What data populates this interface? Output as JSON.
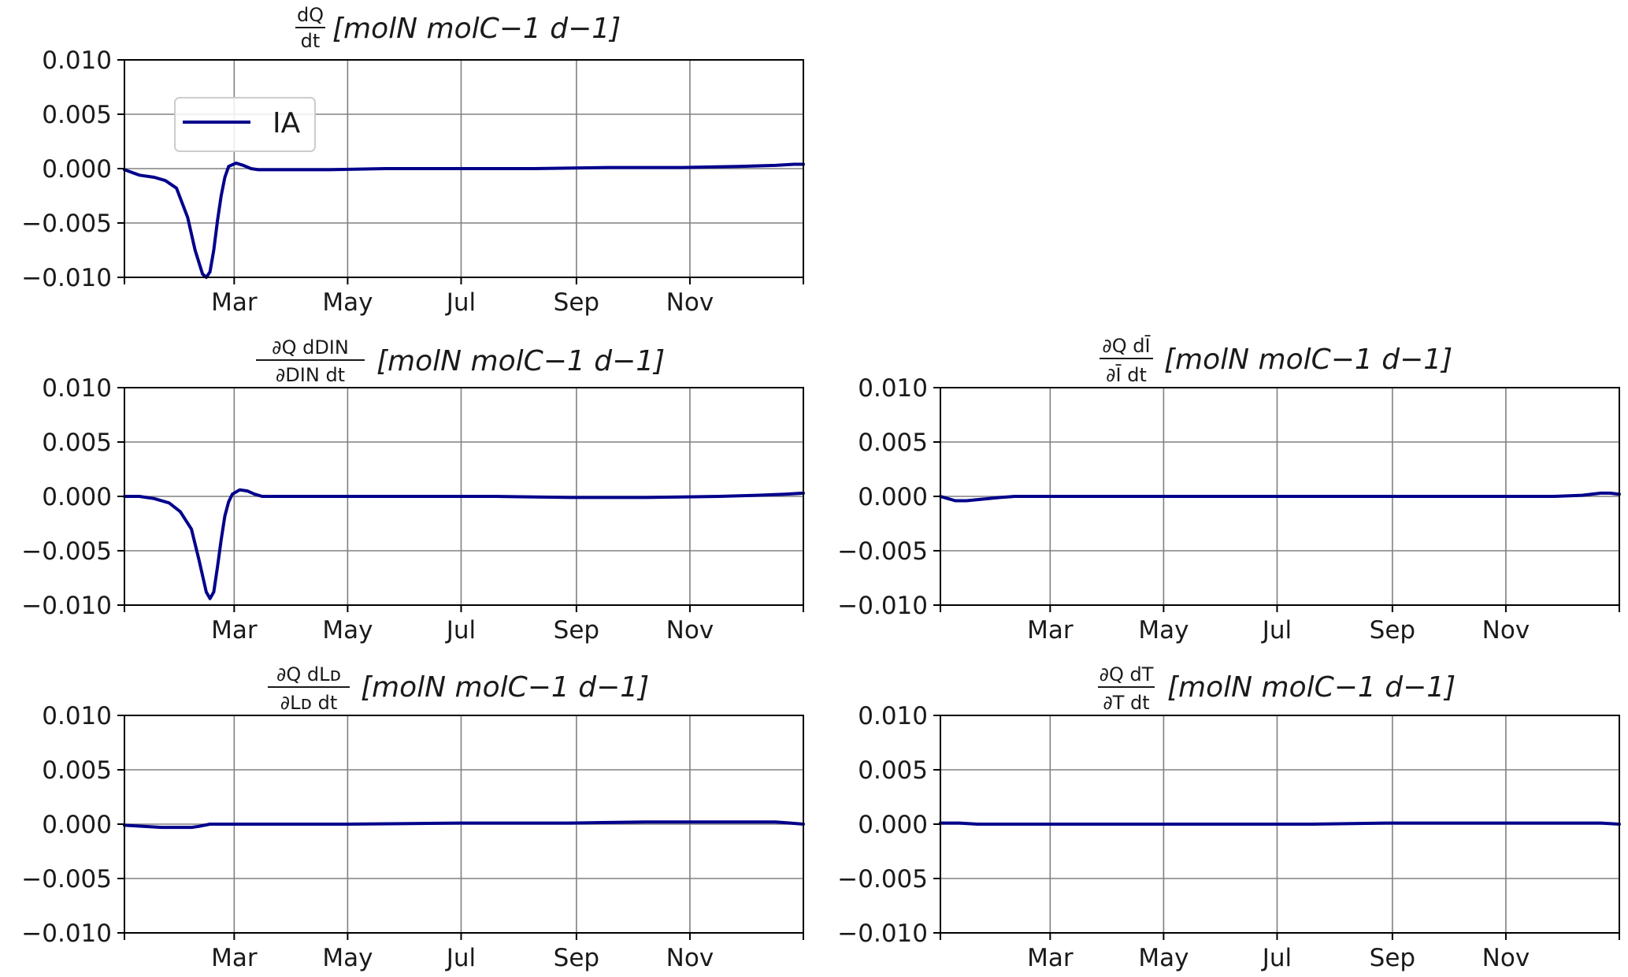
{
  "figure": {
    "line_color": "#00008b",
    "grid_color": "#808080",
    "x_ticks": [
      "Mar",
      "May",
      "Jul",
      "Sep",
      "Nov"
    ],
    "y_ticks": [
      "0.010",
      "0.005",
      "0.000",
      "−0.005",
      "−0.010"
    ]
  },
  "chart_data": [
    {
      "id": "dQdt",
      "type": "line",
      "title": "[molN molC−1 d−1]",
      "title_fraction": {
        "numerator": "dQ",
        "denominator": "dt"
      },
      "legend": [
        "IA"
      ],
      "ylim": [
        -0.01,
        0.01
      ],
      "yticks": [
        0.01,
        0.005,
        0.0,
        -0.005,
        -0.01
      ],
      "xlim": [
        "Jan 1",
        "Dec 31"
      ],
      "xticks": [
        "Mar",
        "May",
        "Jul",
        "Sep",
        "Nov"
      ],
      "series": [
        {
          "name": "IA",
          "x_doy": [
            0,
            8,
            16,
            22,
            28,
            34,
            38,
            42,
            44,
            46,
            48,
            50,
            52,
            54,
            56,
            60,
            64,
            68,
            72,
            76,
            80,
            90,
            110,
            140,
            180,
            220,
            260,
            300,
            330,
            350,
            360,
            365
          ],
          "y": [
            -0.0001,
            -0.0006,
            -0.0008,
            -0.0011,
            -0.0018,
            -0.0045,
            -0.0075,
            -0.0097,
            -0.01,
            -0.0095,
            -0.0075,
            -0.0048,
            -0.0025,
            -0.0008,
            0.0002,
            0.0005,
            0.0003,
            0.0,
            -0.0001,
            -0.0001,
            -0.0001,
            -0.0001,
            -0.0001,
            0.0,
            0.0,
            0.0,
            0.0001,
            0.0001,
            0.0002,
            0.0003,
            0.0004,
            0.0004
          ]
        }
      ]
    },
    {
      "id": "dDIN",
      "type": "line",
      "title": "[molN molC−1 d−1]",
      "title_fraction": {
        "numerator": "∂Q  dDIN",
        "denominator": "∂DIN  dt"
      },
      "ylim": [
        -0.01,
        0.01
      ],
      "yticks": [
        0.01,
        0.005,
        0.0,
        -0.005,
        -0.01
      ],
      "xlim": [
        "Jan 1",
        "Dec 31"
      ],
      "xticks": [
        "Mar",
        "May",
        "Jul",
        "Sep",
        "Nov"
      ],
      "series": [
        {
          "x_doy": [
            0,
            8,
            16,
            24,
            30,
            36,
            40,
            44,
            46,
            48,
            50,
            52,
            54,
            56,
            58,
            62,
            66,
            70,
            74,
            80,
            90,
            120,
            160,
            200,
            240,
            280,
            320,
            340,
            355,
            365
          ],
          "y": [
            0.0,
            0.0,
            -0.0002,
            -0.0006,
            -0.0014,
            -0.003,
            -0.0058,
            -0.0088,
            -0.0094,
            -0.0088,
            -0.0065,
            -0.004,
            -0.0018,
            -0.0005,
            0.0002,
            0.0006,
            0.0005,
            0.0002,
            0.0,
            0.0,
            0.0,
            0.0,
            0.0,
            0.0,
            -0.0001,
            -0.0001,
            0.0,
            0.0001,
            0.0002,
            0.0003
          ]
        }
      ]
    },
    {
      "id": "dI",
      "type": "line",
      "title": "[molN molC−1 d−1]",
      "title_fraction": {
        "numerator": "∂Q dĪ",
        "denominator": "∂Ī dt"
      },
      "ylim": [
        -0.01,
        0.01
      ],
      "yticks": [
        0.01,
        0.005,
        0.0,
        -0.005,
        -0.01
      ],
      "xlim": [
        "Jan 1",
        "Dec 31"
      ],
      "xticks": [
        "Mar",
        "May",
        "Jul",
        "Sep",
        "Nov"
      ],
      "series": [
        {
          "x_doy": [
            0,
            4,
            8,
            14,
            20,
            26,
            32,
            40,
            50,
            60,
            80,
            120,
            180,
            240,
            300,
            330,
            345,
            355,
            360,
            365
          ],
          "y": [
            0.0,
            -0.0002,
            -0.0004,
            -0.0004,
            -0.0003,
            -0.0002,
            -0.0001,
            0.0,
            0.0,
            0.0,
            0.0,
            0.0,
            0.0,
            0.0,
            0.0,
            0.0,
            0.0001,
            0.0003,
            0.0003,
            0.0002
          ]
        }
      ]
    },
    {
      "id": "dLD",
      "type": "line",
      "title": "[molN molC−1 d−1]",
      "title_fraction": {
        "numerator": "∂Q  dLᴅ",
        "denominator": "∂Lᴅ  dt"
      },
      "ylim": [
        -0.01,
        0.01
      ],
      "yticks": [
        0.01,
        0.005,
        0.0,
        -0.005,
        -0.01
      ],
      "xlim": [
        "Jan 1",
        "Dec 31"
      ],
      "xticks": [
        "Mar",
        "May",
        "Jul",
        "Sep",
        "Nov"
      ],
      "series": [
        {
          "x_doy": [
            0,
            10,
            20,
            30,
            36,
            40,
            46,
            52,
            60,
            80,
            120,
            180,
            240,
            280,
            320,
            340,
            350,
            358,
            365
          ],
          "y": [
            -0.0001,
            -0.0002,
            -0.0003,
            -0.0003,
            -0.0003,
            -0.0002,
            0.0,
            0.0,
            0.0,
            0.0,
            0.0,
            0.0001,
            0.0001,
            0.0002,
            0.0002,
            0.0002,
            0.0002,
            0.0001,
            0.0
          ]
        }
      ]
    },
    {
      "id": "dT",
      "type": "line",
      "title": "[molN molC−1 d−1]",
      "title_fraction": {
        "numerator": "∂Q dT",
        "denominator": "∂T dt"
      },
      "ylim": [
        -0.01,
        0.01
      ],
      "yticks": [
        0.01,
        0.005,
        0.0,
        -0.005,
        -0.01
      ],
      "xlim": [
        "Jan 1",
        "Dec 31"
      ],
      "xticks": [
        "Mar",
        "May",
        "Jul",
        "Sep",
        "Nov"
      ],
      "series": [
        {
          "x_doy": [
            0,
            10,
            20,
            30,
            40,
            60,
            90,
            120,
            160,
            200,
            240,
            280,
            320,
            340,
            355,
            365
          ],
          "y": [
            0.0001,
            0.0001,
            0.0,
            0.0,
            0.0,
            0.0,
            0.0,
            0.0,
            0.0,
            0.0,
            0.0001,
            0.0001,
            0.0001,
            0.0001,
            0.0001,
            0.0
          ]
        }
      ]
    }
  ]
}
